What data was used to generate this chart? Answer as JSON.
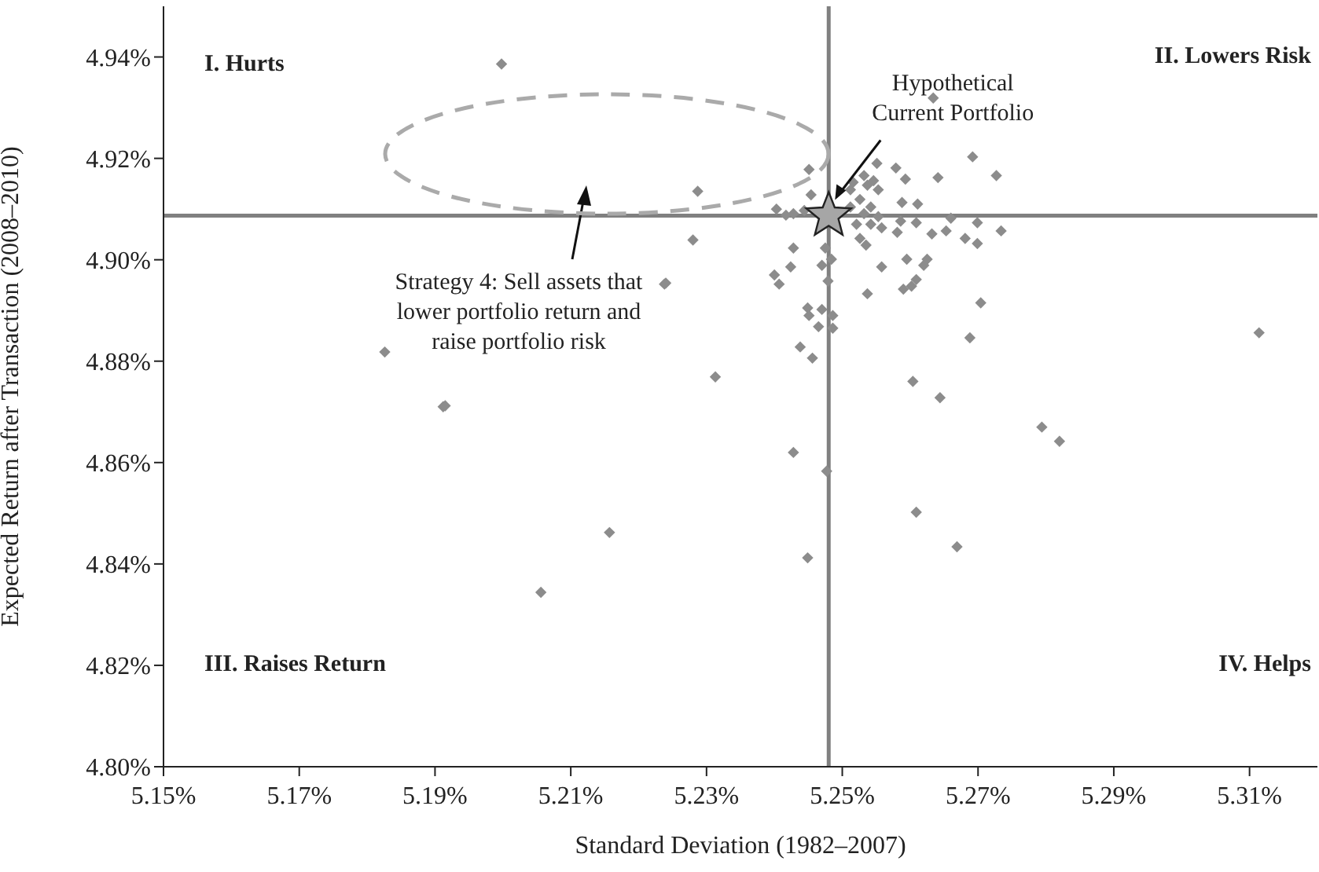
{
  "chart_data": {
    "type": "scatter",
    "xlabel": "Standard Deviation (1982–2007)",
    "ylabel": "Expected Return after Transaction (2008–2010)",
    "xlim": [
      5.15,
      5.32
    ],
    "ylim": [
      4.8,
      4.95
    ],
    "xticks": [
      {
        "value": 5.15,
        "label": "5.15%"
      },
      {
        "value": 5.17,
        "label": "5.17%"
      },
      {
        "value": 5.19,
        "label": "5.19%"
      },
      {
        "value": 5.21,
        "label": "5.21%"
      },
      {
        "value": 5.23,
        "label": "5.23%"
      },
      {
        "value": 5.25,
        "label": "5.25%"
      },
      {
        "value": 5.27,
        "label": "5.27%"
      },
      {
        "value": 5.29,
        "label": "5.29%"
      },
      {
        "value": 5.31,
        "label": "5.31%"
      }
    ],
    "yticks": [
      {
        "value": 4.8,
        "label": "4.80%"
      },
      {
        "value": 4.82,
        "label": "4.82%"
      },
      {
        "value": 4.84,
        "label": "4.84%"
      },
      {
        "value": 4.86,
        "label": "4.86%"
      },
      {
        "value": 4.88,
        "label": "4.88%"
      },
      {
        "value": 4.9,
        "label": "4.90%"
      },
      {
        "value": 4.92,
        "label": "4.92%"
      },
      {
        "value": 4.94,
        "label": "4.94%"
      }
    ],
    "grid": false,
    "legend": false,
    "marker": "diamond",
    "series": [
      {
        "color": "#8c8c8c",
        "x": [
          5.1998,
          5.2634,
          5.2692,
          5.2727,
          5.2287,
          5.228,
          5.2238,
          5.224,
          5.1826,
          5.1912,
          5.1915,
          5.2313,
          5.3114,
          5.2704,
          5.2688,
          5.2604,
          5.2644,
          5.2794,
          5.282,
          5.2428,
          5.2477,
          5.2609,
          5.2157,
          5.2669,
          5.2449,
          5.2056,
          5.2451,
          5.2551,
          5.2579,
          5.2593,
          5.2641,
          5.2588,
          5.2611,
          5.2586,
          5.2609,
          5.266,
          5.2699,
          5.2734,
          5.2632,
          5.2653,
          5.2681,
          5.2699,
          5.2581,
          5.2535,
          5.2558,
          5.2595,
          5.2625,
          5.262,
          5.2609,
          5.259,
          5.2602,
          5.2537,
          5.2428,
          5.2424,
          5.24,
          5.2407,
          5.2449,
          5.2451,
          5.247,
          5.2486,
          5.2465,
          5.2486,
          5.2438,
          5.2456,
          5.247,
          5.2484,
          5.2479,
          5.2475,
          5.2403,
          5.2417,
          5.2428,
          5.2444,
          5.2454,
          5.2516,
          5.2537,
          5.2553,
          5.2526,
          5.2542,
          5.2532,
          5.2553,
          5.2521,
          5.2542,
          5.2558,
          5.2512,
          5.2532,
          5.2546,
          5.2512,
          5.2526
        ],
        "values": [
          4.9386,
          4.9319,
          4.9203,
          4.9166,
          4.9135,
          4.9039,
          4.8952,
          4.8954,
          4.8818,
          4.871,
          4.8712,
          4.8769,
          4.8856,
          4.8915,
          4.8846,
          4.876,
          4.8728,
          4.867,
          4.8642,
          4.862,
          4.8583,
          4.8502,
          4.8462,
          4.8434,
          4.8412,
          4.8344,
          4.9178,
          4.919,
          4.9181,
          4.9159,
          4.9162,
          4.9113,
          4.911,
          4.9076,
          4.9073,
          4.9082,
          4.9073,
          4.9057,
          4.9051,
          4.9057,
          4.9042,
          4.9032,
          4.9054,
          4.9029,
          4.8986,
          4.9001,
          4.9001,
          4.8989,
          4.8961,
          4.8942,
          4.8948,
          4.8933,
          4.9023,
          4.8986,
          4.897,
          4.8952,
          4.8905,
          4.889,
          4.8902,
          4.889,
          4.8868,
          4.8865,
          4.8828,
          4.8806,
          4.8989,
          4.9001,
          4.8958,
          4.9023,
          4.91,
          4.9088,
          4.9091,
          4.9097,
          4.9128,
          4.9153,
          4.9147,
          4.9138,
          4.9119,
          4.9104,
          4.9091,
          4.9085,
          4.907,
          4.907,
          4.9063,
          4.9138,
          4.9166,
          4.9156,
          4.9104,
          4.9042
        ]
      },
      {
        "color": "#a6a6a6",
        "marker": "star",
        "x": [
          5.248
        ],
        "values": [
          4.9087
        ]
      }
    ],
    "ref_lines": [
      {
        "axis": "x",
        "value": 5.248,
        "color": "#808080"
      },
      {
        "axis": "y",
        "value": 4.9087,
        "color": "#808080"
      }
    ],
    "annotations": [
      "I. Hurts",
      "II. Lowers Risk",
      "III. Raises Return",
      "IV. Helps",
      "Hypothetical Current Portfolio",
      "Strategy 4: Sell assets that lower portfolio return and raise portfolio risk"
    ]
  }
}
